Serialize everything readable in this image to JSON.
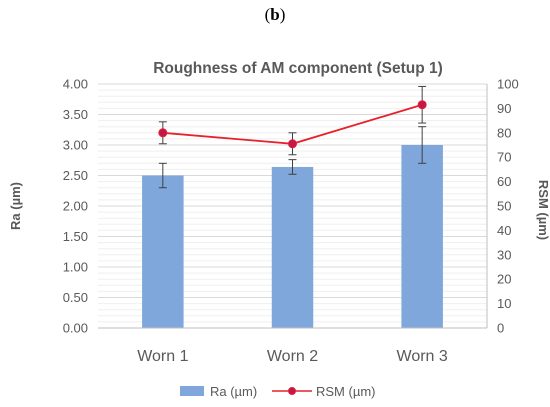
{
  "figure": {
    "panel_label_open": "(",
    "panel_label_letter": "b",
    "panel_label_close": ")"
  },
  "chart_data": {
    "type": "bar",
    "title": "Roughness of AM component (Setup 1)",
    "categories": [
      "Worn 1",
      "Worn 2",
      "Worn 3"
    ],
    "ylabel": "Ra (µm)",
    "y2label": "RSM (µm)",
    "ylim": [
      0,
      4
    ],
    "y2lim": [
      0,
      100
    ],
    "yticks": [
      "0.00",
      "0.50",
      "1.00",
      "1.50",
      "2.00",
      "2.50",
      "3.00",
      "3.50",
      "4.00"
    ],
    "y2ticks": [
      "0",
      "10",
      "20",
      "30",
      "40",
      "50",
      "60",
      "70",
      "80",
      "90",
      "100"
    ],
    "grid": true,
    "legend_position": "bottom",
    "series": [
      {
        "name": "Ra (µm)",
        "type": "bar",
        "axis": "left",
        "color": "#7FA7DB",
        "values": [
          2.5,
          2.64,
          3.0
        ],
        "error": [
          0.2,
          0.12,
          0.3
        ]
      },
      {
        "name": "RSM (µm)",
        "type": "line",
        "axis": "right",
        "color": "#E8202A",
        "marker_color": "#C0174E",
        "values": [
          80,
          75.5,
          91.5
        ],
        "error": [
          4.5,
          4.5,
          7.5
        ]
      }
    ]
  }
}
